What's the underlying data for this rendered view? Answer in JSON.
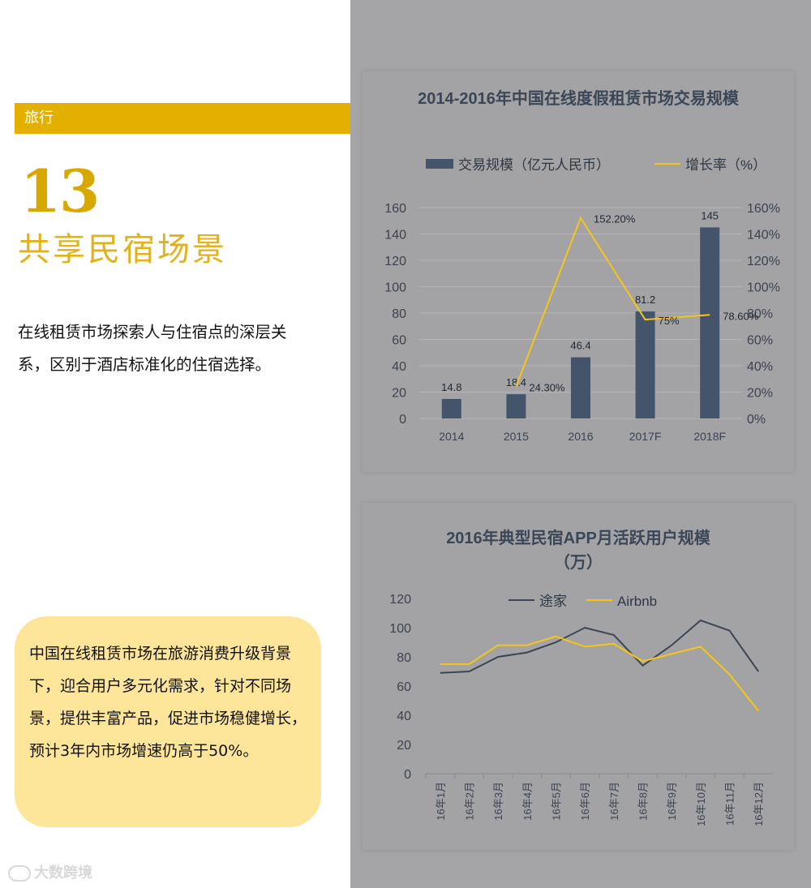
{
  "left": {
    "tag": "旅行",
    "number": "13",
    "title": "共享民宿场景",
    "intro": "在线租赁市场探索人与住宿点的深层关系，区别于酒店标准化的住宿选择。",
    "summary": "中国在线租赁市场在旅游消费升级背景下，迎合用户多元化需求，针对不同场景，提供丰富产品，促进市场稳健增长，预计3年内市场增速仍高于50%。",
    "watermark": "大数跨境"
  },
  "colors": {
    "accent": "#e3b000",
    "bar": "#44546a",
    "line_yellow": "#f5c518",
    "line_dark": "#3b4654",
    "panel": "#a5a5a7"
  },
  "chart_data": [
    {
      "type": "bar",
      "title": "2014-2016年中国在线度假租赁市场交易规模",
      "categories": [
        "2014",
        "2015",
        "2016",
        "2017F",
        "2018F"
      ],
      "series": [
        {
          "name": "交易规模（亿元人民币）",
          "type": "bar",
          "axis": "left",
          "values": [
            14.8,
            18.4,
            46.4,
            81.2,
            145
          ],
          "labels": [
            "14.8",
            "18.4",
            "46.4",
            "81.2",
            "145"
          ]
        },
        {
          "name": "增长率（%）",
          "type": "line",
          "axis": "right",
          "values": [
            null,
            24.3,
            152.2,
            75,
            78.6
          ],
          "labels": [
            "",
            "24.30%",
            "152.20%",
            "75%",
            "78.60%"
          ]
        }
      ],
      "ylim": [
        0,
        160
      ],
      "yticks": [
        "0",
        "20",
        "40",
        "60",
        "80",
        "100",
        "120",
        "140",
        "160"
      ],
      "y2lim": [
        0,
        160
      ],
      "y2ticks": [
        "0%",
        "20%",
        "40%",
        "60%",
        "80%",
        "100%",
        "120%",
        "140%",
        "160%"
      ],
      "legend": "top"
    },
    {
      "type": "line",
      "title_lines": [
        "2016年典型民宿APP月活跃用户规模",
        "（万）"
      ],
      "categories": [
        "16年1月",
        "16年2月",
        "16年3月",
        "16年4月",
        "16年5月",
        "16年6月",
        "16年7月",
        "16年8月",
        "16年9月",
        "16年10月",
        "16年11月",
        "16年12月"
      ],
      "series": [
        {
          "name": "途家",
          "values": [
            69,
            70,
            80,
            83,
            90,
            100,
            95,
            74,
            88,
            105,
            98,
            70
          ]
        },
        {
          "name": "Airbnb",
          "values": [
            75,
            75,
            88,
            88,
            94,
            87,
            89,
            77,
            82,
            87,
            68,
            43
          ]
        }
      ],
      "ylim": [
        0,
        120
      ],
      "yticks": [
        "0",
        "20",
        "40",
        "60",
        "80",
        "100",
        "120"
      ],
      "legend": "top"
    }
  ]
}
